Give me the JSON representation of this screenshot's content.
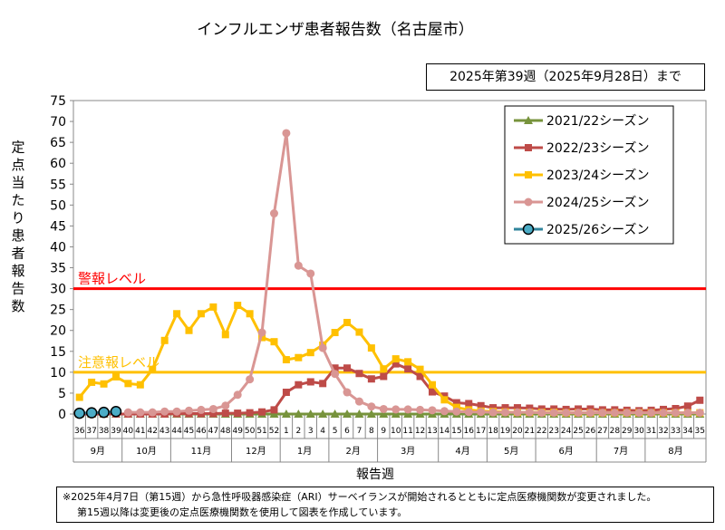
{
  "title": "インフルエンザ患者報告数（名古屋市）",
  "date_note": "2025年第39週（2025年9月28日）まで",
  "footnote": {
    "line1": "※2025年4月7日（第15週）から急性呼吸器感染症（ARI）サーベイランスが開始されるとともに定点医療機関数が変更されました。",
    "line2": "第15週以降は変更後の定点医療機関数を使用して図表を作成しています。"
  },
  "chart_data": {
    "type": "line",
    "ylabel": "定点当たり患者報告数",
    "xlabel": "報告週",
    "ylim": [
      0,
      75
    ],
    "yticks": [
      0,
      5,
      10,
      15,
      20,
      25,
      30,
      35,
      40,
      45,
      50,
      55,
      60,
      65,
      70,
      75
    ],
    "grid": false,
    "legend_position": "top-right",
    "x": [
      "36",
      "37",
      "38",
      "39",
      "40",
      "41",
      "42",
      "43",
      "44",
      "45",
      "46",
      "47",
      "48",
      "49",
      "50",
      "51",
      "52",
      "1",
      "2",
      "3",
      "4",
      "5",
      "6",
      "7",
      "8",
      "9",
      "10",
      "11",
      "12",
      "13",
      "14",
      "15",
      "16",
      "17",
      "18",
      "19",
      "20",
      "21",
      "22",
      "23",
      "24",
      "25",
      "26",
      "27",
      "28",
      "29",
      "30",
      "31",
      "32",
      "33",
      "34",
      "35"
    ],
    "months": [
      {
        "label": "9月",
        "start": 0,
        "end": 3
      },
      {
        "label": "10月",
        "start": 4,
        "end": 7
      },
      {
        "label": "11月",
        "start": 8,
        "end": 12
      },
      {
        "label": "12月",
        "start": 13,
        "end": 16
      },
      {
        "label": "1月",
        "start": 17,
        "end": 20
      },
      {
        "label": "2月",
        "start": 21,
        "end": 24
      },
      {
        "label": "3月",
        "start": 25,
        "end": 29
      },
      {
        "label": "4月",
        "start": 30,
        "end": 33
      },
      {
        "label": "5月",
        "start": 34,
        "end": 37
      },
      {
        "label": "6月",
        "start": 38,
        "end": 42
      },
      {
        "label": "7月",
        "start": 43,
        "end": 46
      },
      {
        "label": "8月",
        "start": 47,
        "end": 51
      }
    ],
    "thresholds": [
      {
        "label": "警報レベル",
        "value": 30,
        "color": "#ff0000"
      },
      {
        "label": "注意報レベル",
        "value": 10,
        "color": "#ffc000"
      }
    ],
    "series": [
      {
        "name": "2021/22シーズン",
        "color": "#77933c",
        "marker": "triangle",
        "values": [
          0,
          0,
          0,
          0,
          0,
          0,
          0,
          0,
          0,
          0,
          0,
          0,
          0,
          0,
          0,
          0,
          0,
          0,
          0,
          0,
          0,
          0,
          0,
          0,
          0,
          0,
          0,
          0,
          0,
          0,
          0,
          0,
          0,
          0,
          0,
          0,
          0,
          0,
          0,
          0,
          0,
          0,
          0,
          0,
          0,
          0,
          0,
          0,
          0,
          0,
          0,
          0
        ]
      },
      {
        "name": "2022/23シーズン",
        "color": "#be4b48",
        "marker": "square",
        "values": [
          0,
          0,
          0,
          0,
          0,
          0,
          0,
          0,
          0.1,
          0.1,
          0.1,
          0.1,
          0.2,
          0.2,
          0.3,
          0.5,
          1,
          5.2,
          7,
          7.7,
          7.3,
          11,
          11,
          9.7,
          8.4,
          9,
          12,
          10.8,
          9,
          5.3,
          4.3,
          2.7,
          2.5,
          2,
          1.5,
          1.5,
          1.5,
          1.4,
          1.2,
          1.2,
          1.1,
          1.2,
          1.2,
          1,
          1,
          0.9,
          0.8,
          0.9,
          1.1,
          1.3,
          1.9,
          3.3
        ]
      },
      {
        "name": "2023/24シーズン",
        "color": "#ffc000",
        "marker": "square",
        "values": [
          4,
          7.6,
          7.2,
          8.9,
          7.3,
          7,
          10.7,
          17.6,
          24,
          20,
          24,
          25.6,
          19,
          26,
          24,
          18.3,
          17.3,
          13,
          13.5,
          14.7,
          16.5,
          19.5,
          21.9,
          19.6,
          15.8,
          10.8,
          13.2,
          12.5,
          10.7,
          7,
          3.4,
          1.6,
          1,
          0.7,
          0.6,
          0.5,
          0.4,
          0.4,
          0.4,
          0.4,
          0.3,
          0.3,
          0.3,
          0.3,
          0.3,
          0.3,
          0.3,
          0.3,
          0.3,
          0.3,
          0.3,
          0.3
        ]
      },
      {
        "name": "2024/25シーズン",
        "color": "#d99694",
        "marker": "circle",
        "values": [
          null,
          null,
          null,
          null,
          0.4,
          0.4,
          0.4,
          0.6,
          0.6,
          0.8,
          1,
          1.2,
          2,
          4.6,
          8.3,
          19.5,
          48,
          67.2,
          35.5,
          33.6,
          15.8,
          9.6,
          5.2,
          3,
          1.8,
          1.2,
          1.1,
          1.1,
          1,
          0.9,
          0.7,
          0.6,
          0.5,
          0.5,
          0.4,
          0.4,
          0.4,
          0.4,
          0.3,
          0.3,
          0.3,
          0.3,
          0.3,
          0.3,
          0.3,
          0.3,
          0.3,
          0.3,
          0.3,
          0.3,
          0.3,
          0.3
        ]
      },
      {
        "name": "2025/26シーズン",
        "color": "#31859c",
        "fill": "#4bacc6",
        "marker": "circle-large",
        "values": [
          0.2,
          0.3,
          0.4,
          0.6,
          null,
          null,
          null,
          null,
          null,
          null,
          null,
          null,
          null,
          null,
          null,
          null,
          null,
          null,
          null,
          null,
          null,
          null,
          null,
          null,
          null,
          null,
          null,
          null,
          null,
          null,
          null,
          null,
          null,
          null,
          null,
          null,
          null,
          null,
          null,
          null,
          null,
          null,
          null,
          null,
          null,
          null,
          null,
          null,
          null,
          null,
          null,
          null
        ]
      }
    ]
  }
}
